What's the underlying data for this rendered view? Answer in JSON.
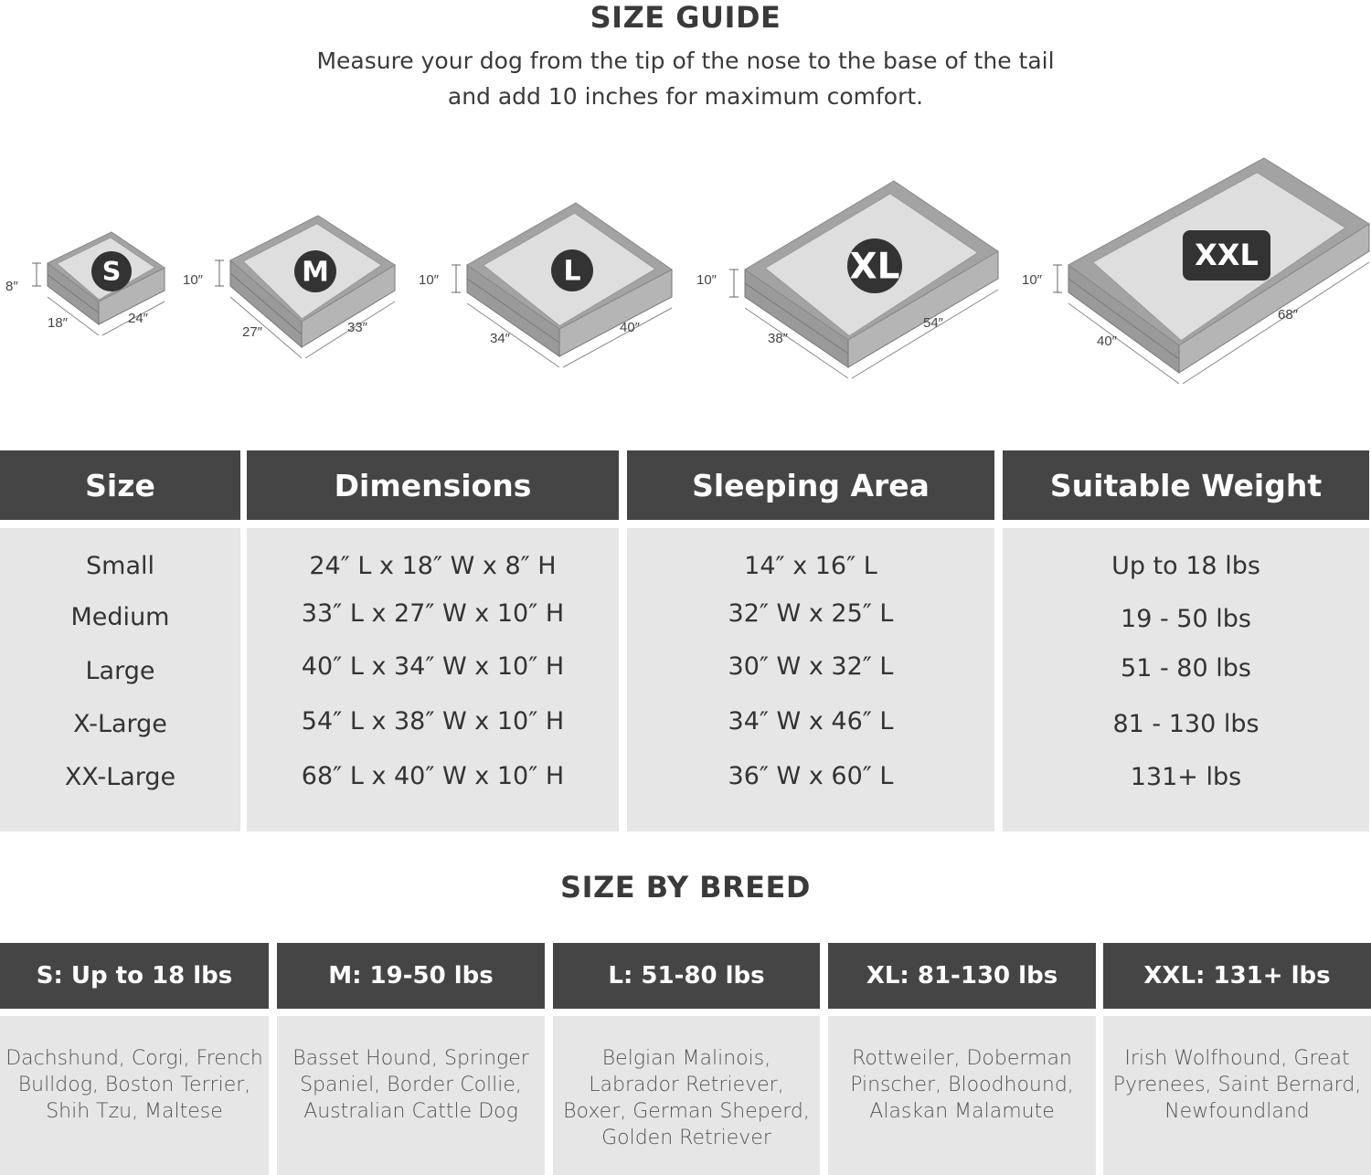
{
  "header": {
    "title": "SIZE GUIDE",
    "subtitle_line1": "Measure your dog from the tip of the nose to the base of the tail",
    "subtitle_line2": "and add 10 inches for maximum comfort."
  },
  "beds": [
    {
      "badge": "S",
      "height": "8″",
      "width": "18″",
      "length": "24″"
    },
    {
      "badge": "M",
      "height": "10″",
      "width": "27″",
      "length": "33″"
    },
    {
      "badge": "L",
      "height": "10″",
      "width": "34″",
      "length": "40″"
    },
    {
      "badge": "XL",
      "height": "10″",
      "width": "38″",
      "length": "54″"
    },
    {
      "badge": "XXL",
      "height": "10″",
      "width": "40″",
      "length": "68″"
    }
  ],
  "size_table": {
    "headers": [
      "Size",
      "Dimensions",
      "Sleeping Area",
      "Suitable Weight"
    ],
    "columns": [
      [
        "Small",
        "Medium",
        "Large",
        "X-Large",
        "XX-Large"
      ],
      [
        "24″ L x 18″ W x 8″ H",
        "33″ L x 27″ W x 10″ H",
        "40″ L x 34″ W x 10″ H",
        "54″ L x 38″ W x 10″ H",
        "68″ L x 40″ W x 10″ H"
      ],
      [
        "14″ x 16″ L",
        "32″ W x 25″ L",
        "30″ W x 32″ L",
        "34″ W x 46″ L",
        "36″ W x 60″ L"
      ],
      [
        "Up to 18 lbs",
        "19 - 50 lbs",
        "51 - 80 lbs",
        "81 - 130 lbs",
        "131+ lbs"
      ]
    ]
  },
  "breed_section": {
    "title": "SIZE BY BREED",
    "headers": [
      "S: Up to 18 lbs",
      "M: 19-50 lbs",
      "L: 51-80 lbs",
      "XL: 81-130 lbs",
      "XXL: 131+ lbs"
    ],
    "breeds": [
      [
        "Dachshund, Corgi, French",
        "Bulldog, Boston Terrier,",
        "Shih Tzu, Maltese"
      ],
      [
        "Basset Hound, Springer",
        "Spaniel, Border Collie,",
        "Australian Cattle Dog"
      ],
      [
        "Belgian Malinois,",
        "Labrador Retriever,",
        "Boxer, German Sheperd,",
        "Golden Retriever"
      ],
      [
        "Rottweiler, Doberman",
        "Pinscher, Bloodhound,",
        "Alaskan Malamute"
      ],
      [
        "Irish Wolfhound, Great",
        "Pyrenees, Saint Bernard,",
        "Newfoundland"
      ]
    ]
  },
  "colors": {
    "header_bg": "#454545",
    "cell_bg": "#e6e6e6",
    "bed_frame": "#a3a3a3",
    "bed_inner": "#dedede",
    "badge": "#333333"
  }
}
